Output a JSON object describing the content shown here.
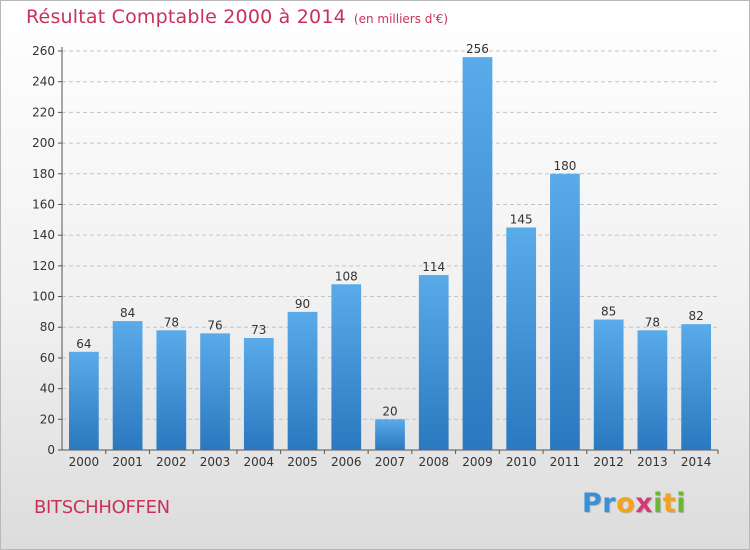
{
  "chart_data": {
    "type": "bar",
    "title": "Résultat Comptable 2000 à 2014",
    "subtitle": "(en milliers d'€)",
    "xlabel": "",
    "ylabel": "",
    "categories": [
      "2000",
      "2001",
      "2002",
      "2003",
      "2004",
      "2005",
      "2006",
      "2007",
      "2008",
      "2009",
      "2010",
      "2011",
      "2012",
      "2013",
      "2014"
    ],
    "values": [
      64,
      84,
      78,
      76,
      73,
      90,
      108,
      20,
      114,
      256,
      145,
      180,
      85,
      78,
      82
    ],
    "ylim": [
      0,
      260
    ],
    "yticks": [
      0,
      20,
      40,
      60,
      80,
      100,
      120,
      140,
      160,
      180,
      200,
      220,
      240,
      260
    ],
    "grid": true,
    "legend": "none",
    "bar_color_top": "#5aabea",
    "bar_color_bottom": "#2a78bf"
  },
  "footer": {
    "commune": "BITSCHHOFFEN",
    "brand": [
      "P",
      "r",
      "o",
      "x",
      "i",
      "t",
      "i"
    ]
  }
}
